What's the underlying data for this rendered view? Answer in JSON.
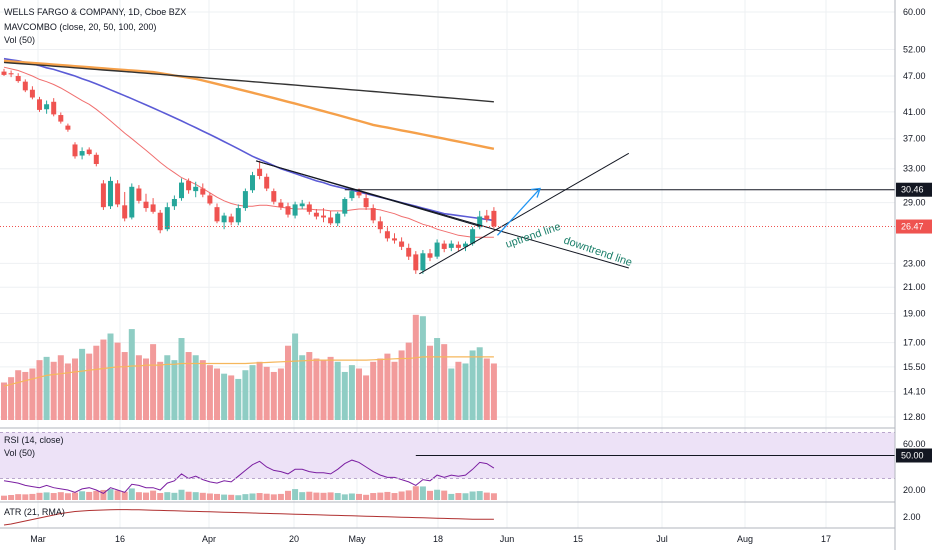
{
  "header": {
    "symbol": "WELLS FARGO & COMPANY, 1D, Cboe BZX",
    "indicator_1": "MAVCOMBO (close, 20, 50, 100, 200)",
    "indicator_2": "Vol (50)"
  },
  "rsi_pane": {
    "title": "RSI (14, close)",
    "vol_title": "Vol (50)"
  },
  "atr_pane": {
    "title": "ATR (21, RMA)"
  },
  "annotations": {
    "uptrend": "uptrend line",
    "downtrend": "downtrend line"
  },
  "colors": {
    "up": "#26a69a",
    "down": "#ef5350",
    "vol_up": "#8fcdc4",
    "vol_down": "#f29b9b",
    "ma20": "#f06f6f",
    "ma50": "#5b5bd6",
    "ma100": "#f5a04a",
    "ma200": "#333333",
    "rsi": "#7b1fa2",
    "rsi_band": "#ede2f7",
    "atr": "#b03030",
    "arrow": "#2196f3"
  },
  "chart_data": {
    "type": "candlestick",
    "x_ticks": [
      "Mar",
      "16",
      "Apr",
      "20",
      "May",
      "18",
      "Jun",
      "15",
      "Jul",
      "Aug",
      "17"
    ],
    "y_ticks": [
      "60.00",
      "52.00",
      "47.00",
      "41.00",
      "37.00",
      "33.00",
      "29.00",
      "23.00",
      "21.00",
      "19.00",
      "17.00",
      "15.50",
      "14.10",
      "12.80"
    ],
    "y_scale": "log",
    "price_labels": {
      "horizontal_level": "30.46",
      "last_price": "26.47"
    },
    "rsi_ticks": [
      "60.00",
      "20.00"
    ],
    "rsi_level_label": "50.00",
    "atr_ticks": [
      "2.00"
    ],
    "candles": [
      {
        "o": 47.8,
        "h": 48.3,
        "l": 47.0,
        "c": 47.2
      },
      {
        "o": 47.5,
        "h": 48.0,
        "l": 46.8,
        "c": 47.3
      },
      {
        "o": 47.0,
        "h": 47.5,
        "l": 45.8,
        "c": 46.1
      },
      {
        "o": 46.0,
        "h": 46.4,
        "l": 44.2,
        "c": 44.5
      },
      {
        "o": 44.6,
        "h": 45.2,
        "l": 43.0,
        "c": 43.3
      },
      {
        "o": 43.0,
        "h": 43.4,
        "l": 41.0,
        "c": 41.3
      },
      {
        "o": 41.4,
        "h": 42.8,
        "l": 40.7,
        "c": 42.2
      },
      {
        "o": 42.6,
        "h": 43.2,
        "l": 40.3,
        "c": 40.6
      },
      {
        "o": 40.5,
        "h": 40.9,
        "l": 39.2,
        "c": 39.5
      },
      {
        "o": 38.9,
        "h": 39.2,
        "l": 38.0,
        "c": 38.3
      },
      {
        "o": 36.2,
        "h": 36.5,
        "l": 34.3,
        "c": 34.6
      },
      {
        "o": 34.7,
        "h": 35.8,
        "l": 34.2,
        "c": 35.3
      },
      {
        "o": 35.5,
        "h": 35.8,
        "l": 34.7,
        "c": 34.9
      },
      {
        "o": 34.8,
        "h": 35.1,
        "l": 33.3,
        "c": 33.6
      },
      {
        "o": 31.2,
        "h": 31.6,
        "l": 28.2,
        "c": 28.5
      },
      {
        "o": 28.6,
        "h": 32.0,
        "l": 28.3,
        "c": 31.5
      },
      {
        "o": 31.2,
        "h": 31.6,
        "l": 28.5,
        "c": 28.8
      },
      {
        "o": 28.7,
        "h": 30.2,
        "l": 27.0,
        "c": 27.3
      },
      {
        "o": 27.4,
        "h": 31.2,
        "l": 27.2,
        "c": 30.8
      },
      {
        "o": 30.6,
        "h": 31.0,
        "l": 28.9,
        "c": 29.2
      },
      {
        "o": 29.1,
        "h": 30.0,
        "l": 28.0,
        "c": 28.4
      },
      {
        "o": 28.8,
        "h": 29.5,
        "l": 27.8,
        "c": 28.0
      },
      {
        "o": 27.9,
        "h": 28.2,
        "l": 25.8,
        "c": 26.1
      },
      {
        "o": 26.2,
        "h": 29.0,
        "l": 26.0,
        "c": 28.5
      },
      {
        "o": 28.6,
        "h": 29.8,
        "l": 28.2,
        "c": 29.4
      },
      {
        "o": 29.5,
        "h": 31.8,
        "l": 29.2,
        "c": 31.3
      },
      {
        "o": 31.5,
        "h": 31.8,
        "l": 30.0,
        "c": 30.4
      },
      {
        "o": 30.3,
        "h": 31.4,
        "l": 29.6,
        "c": 30.8
      },
      {
        "o": 30.6,
        "h": 31.2,
        "l": 29.6,
        "c": 29.9
      },
      {
        "o": 29.8,
        "h": 30.1,
        "l": 28.7,
        "c": 28.9
      },
      {
        "o": 28.5,
        "h": 28.9,
        "l": 26.8,
        "c": 27.0
      },
      {
        "o": 26.9,
        "h": 27.9,
        "l": 26.2,
        "c": 27.6
      },
      {
        "o": 27.5,
        "h": 27.8,
        "l": 26.6,
        "c": 26.9
      },
      {
        "o": 26.9,
        "h": 28.8,
        "l": 26.6,
        "c": 28.4
      },
      {
        "o": 28.4,
        "h": 30.6,
        "l": 28.1,
        "c": 30.3
      },
      {
        "o": 30.4,
        "h": 32.6,
        "l": 30.1,
        "c": 32.2
      },
      {
        "o": 33.0,
        "h": 34.0,
        "l": 31.7,
        "c": 32.1
      },
      {
        "o": 32.0,
        "h": 32.4,
        "l": 30.3,
        "c": 30.6
      },
      {
        "o": 30.3,
        "h": 30.6,
        "l": 28.8,
        "c": 29.1
      },
      {
        "o": 29.0,
        "h": 29.4,
        "l": 28.2,
        "c": 28.5
      },
      {
        "o": 28.6,
        "h": 29.0,
        "l": 27.4,
        "c": 27.7
      },
      {
        "o": 27.6,
        "h": 29.1,
        "l": 27.3,
        "c": 28.8
      },
      {
        "o": 28.6,
        "h": 29.3,
        "l": 28.3,
        "c": 28.9
      },
      {
        "o": 28.8,
        "h": 29.1,
        "l": 27.7,
        "c": 28.0
      },
      {
        "o": 27.9,
        "h": 28.3,
        "l": 27.2,
        "c": 27.5
      },
      {
        "o": 27.6,
        "h": 28.4,
        "l": 26.9,
        "c": 27.4
      },
      {
        "o": 27.4,
        "h": 28.1,
        "l": 26.6,
        "c": 26.8
      },
      {
        "o": 26.8,
        "h": 28.0,
        "l": 26.5,
        "c": 27.8
      },
      {
        "o": 27.8,
        "h": 29.6,
        "l": 27.5,
        "c": 29.4
      },
      {
        "o": 29.5,
        "h": 30.5,
        "l": 29.2,
        "c": 30.3
      },
      {
        "o": 30.2,
        "h": 30.6,
        "l": 29.5,
        "c": 29.8
      },
      {
        "o": 29.5,
        "h": 30.0,
        "l": 28.2,
        "c": 28.5
      },
      {
        "o": 28.4,
        "h": 28.8,
        "l": 26.8,
        "c": 27.1
      },
      {
        "o": 27.0,
        "h": 27.5,
        "l": 25.8,
        "c": 26.2
      },
      {
        "o": 26.0,
        "h": 26.4,
        "l": 25.0,
        "c": 25.3
      },
      {
        "o": 25.3,
        "h": 25.8,
        "l": 24.8,
        "c": 25.1
      },
      {
        "o": 25.0,
        "h": 25.4,
        "l": 24.2,
        "c": 24.5
      },
      {
        "o": 24.4,
        "h": 24.8,
        "l": 23.3,
        "c": 23.6
      },
      {
        "o": 23.8,
        "h": 24.1,
        "l": 22.1,
        "c": 22.4
      },
      {
        "o": 22.4,
        "h": 24.2,
        "l": 22.1,
        "c": 23.9
      },
      {
        "o": 23.9,
        "h": 24.3,
        "l": 23.2,
        "c": 23.5
      },
      {
        "o": 23.6,
        "h": 25.2,
        "l": 23.4,
        "c": 24.9
      },
      {
        "o": 24.8,
        "h": 25.1,
        "l": 24.0,
        "c": 24.3
      },
      {
        "o": 24.4,
        "h": 25.1,
        "l": 24.1,
        "c": 24.8
      },
      {
        "o": 24.7,
        "h": 25.0,
        "l": 24.1,
        "c": 24.4
      },
      {
        "o": 24.5,
        "h": 25.0,
        "l": 24.1,
        "c": 24.8
      },
      {
        "o": 24.8,
        "h": 26.4,
        "l": 24.6,
        "c": 26.2
      },
      {
        "o": 26.4,
        "h": 28.1,
        "l": 26.2,
        "c": 27.5
      },
      {
        "o": 27.6,
        "h": 28.2,
        "l": 26.9,
        "c": 27.2
      },
      {
        "o": 28.1,
        "h": 28.5,
        "l": 26.3,
        "c": 26.5
      }
    ],
    "volume": [
      14.6,
      14.9,
      15.3,
      15.2,
      15.4,
      15.9,
      16.1,
      15.8,
      16.2,
      15.7,
      16.0,
      16.6,
      16.3,
      16.8,
      17.2,
      17.6,
      17.0,
      16.4,
      17.9,
      16.2,
      16.0,
      16.9,
      15.8,
      16.2,
      15.9,
      17.3,
      16.4,
      16.2,
      15.9,
      15.6,
      15.4,
      15.1,
      15.0,
      14.8,
      15.3,
      15.6,
      15.8,
      15.5,
      15.2,
      15.4,
      16.8,
      17.6,
      16.2,
      16.4,
      16.0,
      15.9,
      16.1,
      15.8,
      15.2,
      15.6,
      15.4,
      15.0,
      15.8,
      16.0,
      16.3,
      15.8,
      16.5,
      17.0,
      18.9,
      18.8,
      16.8,
      17.3,
      16.9,
      15.4,
      15.8,
      15.7,
      16.5,
      16.7,
      16.0,
      15.7
    ],
    "series": [
      {
        "name": "MA 20",
        "values": [
          48.6,
          48.3,
          48.0,
          47.5,
          47.0,
          46.4,
          46.0,
          45.5,
          44.9,
          44.2,
          43.5,
          42.8,
          42.2,
          41.4,
          40.5,
          39.6,
          38.7,
          37.8,
          37.0,
          36.2,
          35.4,
          34.6,
          33.8,
          33.1,
          32.5,
          31.9,
          31.5,
          31.1,
          30.6,
          30.1,
          29.6,
          29.2,
          28.9,
          28.7,
          28.6,
          28.6,
          28.7,
          28.7,
          28.6,
          28.5,
          28.4,
          28.3,
          28.3,
          28.3,
          28.2,
          28.2,
          28.1,
          28.1,
          28.1,
          28.2,
          28.3,
          28.3,
          28.3,
          28.2,
          28.0,
          27.8,
          27.5,
          27.3,
          27.0,
          26.7,
          26.5,
          26.2,
          26.0,
          25.8,
          25.6,
          25.5,
          25.4,
          25.4,
          25.4,
          25.4
        ]
      },
      {
        "name": "MA 50",
        "values": [
          50.2,
          50.0,
          49.8,
          49.5,
          49.2,
          48.9,
          48.5,
          48.2,
          47.8,
          47.4,
          47.0,
          46.5,
          46.1,
          45.6,
          45.1,
          44.6,
          44.1,
          43.6,
          43.1,
          42.6,
          42.1,
          41.6,
          41.1,
          40.6,
          40.1,
          39.6,
          39.1,
          38.6,
          38.1,
          37.6,
          37.1,
          36.6,
          36.1,
          35.6,
          35.1,
          34.6,
          34.2,
          33.8,
          33.4,
          33.0,
          32.7,
          32.4,
          32.1,
          31.8,
          31.5,
          31.3,
          31.0,
          30.8,
          30.6,
          30.4,
          30.2,
          30.0,
          29.8,
          29.6,
          29.4,
          29.2,
          29.0,
          28.8,
          28.6,
          28.4,
          28.2,
          28.0,
          27.8,
          27.7,
          27.6,
          27.5,
          27.4,
          27.3,
          27.2,
          27.1
        ]
      },
      {
        "name": "MA 100",
        "values": [
          49.8,
          49.7,
          49.6,
          49.5,
          49.4,
          49.3,
          49.2,
          49.1,
          49.0,
          48.9,
          48.8,
          48.7,
          48.6,
          48.5,
          48.4,
          48.3,
          48.2,
          48.1,
          48.0,
          47.9,
          47.8,
          47.7,
          47.5,
          47.3,
          47.1,
          46.9,
          46.7,
          46.5,
          46.2,
          45.9,
          45.6,
          45.3,
          45.0,
          44.7,
          44.4,
          44.1,
          43.8,
          43.5,
          43.2,
          42.9,
          42.6,
          42.3,
          42.0,
          41.7,
          41.4,
          41.1,
          40.8,
          40.5,
          40.2,
          39.9,
          39.6,
          39.3,
          39.0,
          38.8,
          38.6,
          38.4,
          38.2,
          38.0,
          37.8,
          37.6,
          37.4,
          37.2,
          37.0,
          36.8,
          36.6,
          36.4,
          36.2,
          36.0,
          35.8,
          35.6
        ]
      },
      {
        "name": "MA 200",
        "values": [
          49.5,
          49.4,
          49.3,
          49.2,
          49.1,
          49.0,
          48.9,
          48.8,
          48.7,
          48.6,
          48.5,
          48.4,
          48.3,
          48.2,
          48.1,
          48.0,
          47.9,
          47.8,
          47.7,
          47.6,
          47.5,
          47.4,
          47.3,
          47.2,
          47.1,
          47.0,
          46.9,
          46.8,
          46.7,
          46.6,
          46.5,
          46.4,
          46.3,
          46.2,
          46.1,
          46.0,
          45.9,
          45.8,
          45.7,
          45.6,
          45.5,
          45.4,
          45.3,
          45.2,
          45.1,
          45.0,
          44.9,
          44.8,
          44.7,
          44.6,
          44.5,
          44.4,
          44.3,
          44.2,
          44.1,
          44.0,
          43.9,
          43.8,
          43.7,
          43.6,
          43.5,
          43.4,
          43.3,
          43.2,
          43.1,
          43.0,
          42.9,
          42.8,
          42.7,
          42.6
        ]
      },
      {
        "name": "Vol MA",
        "values": [
          14.4,
          14.5,
          14.6,
          14.7,
          14.8,
          14.9,
          15.0,
          15.05,
          15.1,
          15.15,
          15.2,
          15.25,
          15.3,
          15.35,
          15.4,
          15.45,
          15.5,
          15.5,
          15.55,
          15.55,
          15.6,
          15.6,
          15.6,
          15.65,
          15.65,
          15.7,
          15.7,
          15.7,
          15.7,
          15.7,
          15.7,
          15.7,
          15.7,
          15.7,
          15.7,
          15.72,
          15.74,
          15.76,
          15.78,
          15.8,
          15.82,
          15.84,
          15.86,
          15.88,
          15.9,
          15.9,
          15.9,
          15.9,
          15.9,
          15.9,
          15.9,
          15.9,
          15.92,
          15.94,
          15.96,
          15.98,
          16.0,
          16.0,
          16.05,
          16.1,
          16.1,
          16.1,
          16.1,
          16.1,
          16.1,
          16.1,
          16.1,
          16.1,
          16.1,
          16.1
        ]
      },
      {
        "name": "RSI",
        "values": [
          28,
          27,
          26,
          24,
          23,
          22,
          24,
          22,
          21,
          20,
          18,
          21,
          22,
          20,
          17,
          22,
          20,
          18,
          25,
          24,
          22,
          22,
          20,
          26,
          28,
          34,
          30,
          32,
          29,
          27,
          26,
          28,
          27,
          32,
          37,
          42,
          45,
          40,
          37,
          36,
          34,
          38,
          38,
          36,
          35,
          35,
          34,
          38,
          43,
          46,
          44,
          40,
          36,
          33,
          31,
          31,
          29,
          27,
          24,
          29,
          28,
          33,
          31,
          33,
          32,
          33,
          38,
          44,
          43,
          39
        ]
      },
      {
        "name": "ATR",
        "values": [
          1.2,
          1.3,
          1.45,
          1.6,
          1.75,
          1.9,
          2.05,
          2.2,
          2.35,
          2.45,
          2.55,
          2.6,
          2.65,
          2.68,
          2.7,
          2.72,
          2.74,
          2.74,
          2.73,
          2.72,
          2.7,
          2.68,
          2.66,
          2.64,
          2.62,
          2.6,
          2.58,
          2.56,
          2.54,
          2.52,
          2.5,
          2.48,
          2.46,
          2.44,
          2.42,
          2.4,
          2.38,
          2.36,
          2.34,
          2.32,
          2.3,
          2.28,
          2.26,
          2.24,
          2.22,
          2.2,
          2.18,
          2.16,
          2.14,
          2.12,
          2.1,
          2.08,
          2.06,
          2.04,
          2.02,
          2.0,
          1.98,
          1.96,
          1.94,
          1.92,
          1.9,
          1.88,
          1.86,
          1.84,
          1.82,
          1.8,
          1.78,
          1.78,
          1.78,
          1.78
        ]
      }
    ],
    "drawings": {
      "downtrend_line": {
        "from": {
          "i": 35.5,
          "v": 34.0
        },
        "to": {
          "i": 88,
          "v": 22.6
        }
      },
      "uptrend_line": {
        "from": {
          "i": 58.5,
          "v": 22.1
        },
        "to": {
          "i": 88,
          "v": 35.0
        }
      },
      "upper_trend_line": {
        "from": {
          "i": 35.5,
          "v": 34.0
        },
        "to": {
          "i": 67,
          "v": 26.5
        }
      },
      "horizontal_level": {
        "v": 30.46,
        "from_i": 48
      },
      "projection_arrow": {
        "from": {
          "i": 69.5,
          "v": 25.6
        },
        "to": {
          "i": 75.5,
          "v": 30.6
        }
      },
      "rsi_level": {
        "v": 50,
        "from_i": 58
      }
    }
  }
}
